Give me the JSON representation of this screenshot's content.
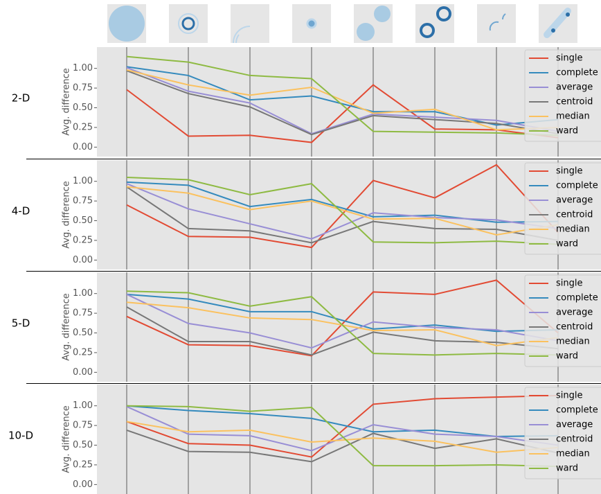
{
  "chart_data": [
    {
      "type": "line",
      "title": "2-D",
      "ylabel": "Avg. difference",
      "categories": [
        null,
        null,
        null,
        null,
        null,
        null,
        null,
        null
      ],
      "series": [
        {
          "name": "single",
          "color": "#E24A33",
          "values": [
            0.73,
            0.14,
            0.15,
            0.06,
            0.79,
            0.23,
            0.22,
            0.12
          ]
        },
        {
          "name": "complete",
          "color": "#348ABD",
          "values": [
            1.02,
            0.91,
            0.6,
            0.65,
            0.45,
            0.45,
            0.28,
            0.35
          ]
        },
        {
          "name": "average",
          "color": "#988ED5",
          "values": [
            1.01,
            0.71,
            0.56,
            0.17,
            0.42,
            0.38,
            0.34,
            0.2
          ]
        },
        {
          "name": "centroid",
          "color": "#777777",
          "values": [
            0.97,
            0.68,
            0.51,
            0.16,
            0.4,
            0.35,
            0.3,
            0.17
          ]
        },
        {
          "name": "median",
          "color": "#FBC15E",
          "values": [
            0.98,
            0.79,
            0.66,
            0.76,
            0.43,
            0.48,
            0.22,
            0.25
          ]
        },
        {
          "name": "ward",
          "color": "#8EBA42",
          "values": [
            1.15,
            1.08,
            0.91,
            0.87,
            0.2,
            0.19,
            0.18,
            0.15
          ]
        }
      ],
      "ylim": [
        -0.12,
        1.27
      ],
      "yticks": [
        {
          "value": 0,
          "label": "0.00"
        },
        {
          "value": 0.25,
          "label": "0.25"
        },
        {
          "value": 0.5,
          "label": "0.50"
        },
        {
          "value": 0.75,
          "label": "0.75"
        },
        {
          "value": 1,
          "label": "1.00"
        }
      ],
      "grid": "x",
      "legend": "upper right"
    },
    {
      "type": "line",
      "title": "4-D",
      "ylabel": "Avg. difference",
      "categories": [
        null,
        null,
        null,
        null,
        null,
        null,
        null,
        null
      ],
      "series": [
        {
          "name": "single",
          "color": "#E24A33",
          "values": [
            0.7,
            0.3,
            0.29,
            0.16,
            1.01,
            0.79,
            1.21,
            0.35
          ]
        },
        {
          "name": "complete",
          "color": "#348ABD",
          "values": [
            0.99,
            0.95,
            0.68,
            0.77,
            0.55,
            0.57,
            0.48,
            0.49
          ]
        },
        {
          "name": "average",
          "color": "#988ED5",
          "values": [
            0.97,
            0.65,
            0.46,
            0.27,
            0.6,
            0.54,
            0.51,
            0.4
          ]
        },
        {
          "name": "centroid",
          "color": "#777777",
          "values": [
            0.93,
            0.4,
            0.37,
            0.22,
            0.49,
            0.4,
            0.39,
            0.25
          ]
        },
        {
          "name": "median",
          "color": "#FBC15E",
          "values": [
            0.93,
            0.85,
            0.64,
            0.75,
            0.52,
            0.53,
            0.32,
            0.45
          ]
        },
        {
          "name": "ward",
          "color": "#8EBA42",
          "values": [
            1.05,
            1.02,
            0.83,
            0.97,
            0.23,
            0.22,
            0.24,
            0.2
          ]
        }
      ],
      "ylim": [
        -0.12,
        1.27
      ],
      "yticks": [
        {
          "value": 0,
          "label": "0.00"
        },
        {
          "value": 0.25,
          "label": "0.25"
        },
        {
          "value": 0.5,
          "label": "0.50"
        },
        {
          "value": 0.75,
          "label": "0.75"
        },
        {
          "value": 1,
          "label": "1.00"
        }
      ],
      "grid": "x",
      "legend": "upper right"
    },
    {
      "type": "line",
      "title": "5-D",
      "ylabel": "Avg. difference",
      "categories": [
        null,
        null,
        null,
        null,
        null,
        null,
        null,
        null
      ],
      "series": [
        {
          "name": "single",
          "color": "#E24A33",
          "values": [
            0.71,
            0.35,
            0.34,
            0.21,
            1.02,
            0.99,
            1.17,
            0.5
          ]
        },
        {
          "name": "complete",
          "color": "#348ABD",
          "values": [
            0.99,
            0.93,
            0.77,
            0.77,
            0.55,
            0.6,
            0.52,
            0.54
          ]
        },
        {
          "name": "average",
          "color": "#988ED5",
          "values": [
            0.99,
            0.62,
            0.5,
            0.31,
            0.64,
            0.57,
            0.54,
            0.4
          ]
        },
        {
          "name": "centroid",
          "color": "#777777",
          "values": [
            0.83,
            0.39,
            0.39,
            0.22,
            0.51,
            0.4,
            0.38,
            0.3
          ]
        },
        {
          "name": "median",
          "color": "#FBC15E",
          "values": [
            0.89,
            0.82,
            0.69,
            0.67,
            0.53,
            0.54,
            0.34,
            0.44
          ]
        },
        {
          "name": "ward",
          "color": "#8EBA42",
          "values": [
            1.03,
            1.01,
            0.84,
            0.96,
            0.24,
            0.22,
            0.24,
            0.22
          ]
        }
      ],
      "ylim": [
        -0.12,
        1.27
      ],
      "yticks": [
        {
          "value": 0,
          "label": "0.00"
        },
        {
          "value": 0.25,
          "label": "0.25"
        },
        {
          "value": 0.5,
          "label": "0.50"
        },
        {
          "value": 0.75,
          "label": "0.75"
        },
        {
          "value": 1,
          "label": "1.00"
        }
      ],
      "grid": "x",
      "legend": "upper right"
    },
    {
      "type": "line",
      "title": "10-D",
      "ylabel": "Avg. difference",
      "categories": [
        null,
        null,
        null,
        null,
        null,
        null,
        null,
        null
      ],
      "series": [
        {
          "name": "single",
          "color": "#E24A33",
          "values": [
            0.8,
            0.52,
            0.5,
            0.35,
            1.02,
            1.09,
            1.11,
            1.13
          ]
        },
        {
          "name": "complete",
          "color": "#348ABD",
          "values": [
            1.0,
            0.94,
            0.9,
            0.84,
            0.67,
            0.69,
            0.61,
            0.62
          ]
        },
        {
          "name": "average",
          "color": "#988ED5",
          "values": [
            0.99,
            0.64,
            0.62,
            0.43,
            0.76,
            0.64,
            0.61,
            0.5
          ]
        },
        {
          "name": "centroid",
          "color": "#777777",
          "values": [
            0.69,
            0.42,
            0.41,
            0.29,
            0.65,
            0.46,
            0.58,
            0.4
          ]
        },
        {
          "name": "median",
          "color": "#FBC15E",
          "values": [
            0.8,
            0.67,
            0.69,
            0.54,
            0.59,
            0.55,
            0.41,
            0.47
          ]
        },
        {
          "name": "ward",
          "color": "#8EBA42",
          "values": [
            1.0,
            0.99,
            0.93,
            0.98,
            0.24,
            0.24,
            0.25,
            0.23
          ]
        }
      ],
      "ylim": [
        -0.12,
        1.27
      ],
      "yticks": [
        {
          "value": 0,
          "label": "0.00"
        },
        {
          "value": 0.25,
          "label": "0.25"
        },
        {
          "value": 0.5,
          "label": "0.50"
        },
        {
          "value": 0.75,
          "label": "0.75"
        },
        {
          "value": 1,
          "label": "1.00"
        }
      ],
      "grid": "x",
      "legend": "upper right"
    }
  ]
}
